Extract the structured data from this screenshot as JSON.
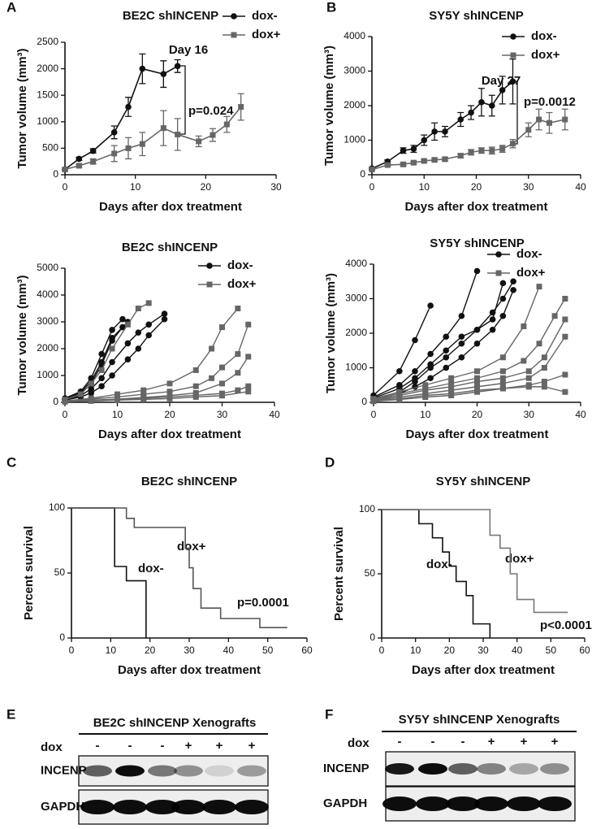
{
  "chart_data": [
    {
      "type": "line",
      "panel": "A",
      "title": "BE2C shINCENP",
      "xlabel": "Days after dox treatment",
      "ylabel": "Tumor volume (mm³)",
      "xlim": [
        0,
        30
      ],
      "xticks": [
        0,
        10,
        20,
        30
      ],
      "ylim": [
        0,
        2500
      ],
      "yticks": [
        0,
        500,
        1000,
        1500,
        2000,
        2500
      ],
      "annotations": [
        "Day 16",
        "p=0.024"
      ],
      "series": [
        {
          "name": "dox-",
          "color": "#111111",
          "marker": "circle",
          "x": [
            0,
            2,
            4,
            7,
            9,
            11,
            14,
            16
          ],
          "values": [
            100,
            300,
            450,
            800,
            1280,
            2000,
            1900,
            2050
          ],
          "errors": [
            20,
            30,
            40,
            120,
            180,
            280,
            250,
            120
          ]
        },
        {
          "name": "dox+",
          "color": "#666666",
          "marker": "square",
          "x": [
            0,
            2,
            4,
            7,
            9,
            11,
            14,
            16,
            19,
            21,
            23,
            25
          ],
          "values": [
            100,
            170,
            250,
            400,
            500,
            580,
            880,
            760,
            630,
            750,
            950,
            1280
          ],
          "errors": [
            20,
            30,
            50,
            150,
            200,
            220,
            330,
            300,
            100,
            120,
            150,
            250
          ]
        }
      ]
    },
    {
      "type": "line",
      "panel": "B",
      "title": "SY5Y shINCENP",
      "xlabel": "Days after dox treatment",
      "ylabel": "Tumor volume (mm³)",
      "xlim": [
        0,
        40
      ],
      "xticks": [
        0,
        10,
        20,
        30,
        40
      ],
      "ylim": [
        0,
        4000
      ],
      "yticks": [
        0,
        1000,
        2000,
        3000,
        4000
      ],
      "annotations": [
        "Day 27",
        "p=0.0012"
      ],
      "series": [
        {
          "name": "dox-",
          "color": "#111111",
          "marker": "circle",
          "x": [
            0,
            3,
            6,
            8,
            10,
            12,
            14,
            17,
            19,
            21,
            23,
            25,
            27
          ],
          "values": [
            180,
            380,
            700,
            750,
            1000,
            1250,
            1250,
            1600,
            1800,
            2100,
            2000,
            2450,
            2700
          ],
          "errors": [
            30,
            50,
            80,
            100,
            150,
            250,
            150,
            200,
            200,
            400,
            300,
            400,
            650
          ]
        },
        {
          "name": "dox+",
          "color": "#666666",
          "marker": "square",
          "x": [
            0,
            3,
            6,
            8,
            10,
            12,
            14,
            17,
            19,
            21,
            23,
            25,
            27,
            30,
            32,
            34,
            37
          ],
          "values": [
            150,
            280,
            300,
            350,
            400,
            430,
            450,
            550,
            650,
            700,
            700,
            750,
            900,
            1300,
            1600,
            1500,
            1600
          ],
          "errors": [
            20,
            30,
            40,
            40,
            50,
            50,
            50,
            60,
            80,
            80,
            100,
            100,
            120,
            200,
            300,
            300,
            300
          ]
        }
      ]
    },
    {
      "type": "line",
      "title": "BE2C shINCENP",
      "xlabel": "Days after dox treatment",
      "ylabel": "Tumor volume (mm³)",
      "xlim": [
        0,
        40
      ],
      "xticks": [
        0,
        10,
        20,
        30,
        40
      ],
      "ylim": [
        0,
        5000
      ],
      "yticks": [
        0,
        1000,
        2000,
        3000,
        4000,
        5000
      ],
      "series": [
        {
          "name": "dox-",
          "color": "#111111",
          "marker": "circle",
          "tumors": [
            {
              "x": [
                0,
                3,
                5,
                7,
                9,
                11
              ],
              "values": [
                150,
                400,
                900,
                1800,
                2700,
                3100
              ]
            },
            {
              "x": [
                0,
                3,
                5,
                7,
                9,
                11
              ],
              "values": [
                100,
                300,
                700,
                1400,
                2300,
                2800
              ]
            },
            {
              "x": [
                0,
                3,
                5,
                7,
                9,
                12,
                14,
                16,
                19
              ],
              "values": [
                100,
                250,
                500,
                900,
                1500,
                2200,
                2600,
                2900,
                3300
              ]
            },
            {
              "x": [
                0,
                3,
                5,
                7,
                9,
                12,
                14,
                16,
                19
              ],
              "values": [
                80,
                200,
                350,
                600,
                1000,
                1600,
                2000,
                2500,
                3100
              ]
            },
            {
              "x": [
                0,
                3,
                5,
                7,
                9,
                12
              ],
              "values": [
                120,
                350,
                800,
                1500,
                2400,
                3000
              ]
            }
          ]
        },
        {
          "name": "dox+",
          "color": "#666666",
          "marker": "square",
          "tumors": [
            {
              "x": [
                0,
                3,
                5,
                7,
                9,
                12,
                14,
                16
              ],
              "values": [
                100,
                300,
                700,
                1200,
                2000,
                2900,
                3500,
                3700
              ]
            },
            {
              "x": [
                0,
                5,
                10,
                15,
                20,
                25,
                28,
                30,
                33
              ],
              "values": [
                50,
                150,
                300,
                450,
                700,
                1200,
                2000,
                2800,
                3500
              ]
            },
            {
              "x": [
                0,
                5,
                10,
                15,
                20,
                25,
                28,
                30,
                33,
                35
              ],
              "values": [
                50,
                120,
                200,
                300,
                400,
                600,
                900,
                1300,
                1800,
                2900
              ]
            },
            {
              "x": [
                0,
                5,
                10,
                15,
                20,
                25,
                30,
                33,
                35
              ],
              "values": [
                40,
                80,
                120,
                180,
                250,
                350,
                700,
                1100,
                1700
              ]
            },
            {
              "x": [
                0,
                5,
                10,
                15,
                20,
                25,
                30,
                33,
                35
              ],
              "values": [
                30,
                60,
                100,
                150,
                200,
                260,
                330,
                450,
                600
              ]
            },
            {
              "x": [
                0,
                5,
                10,
                15,
                20,
                25,
                30,
                35
              ],
              "values": [
                20,
                50,
                80,
                110,
                140,
                200,
                250,
                400
              ]
            }
          ]
        }
      ]
    },
    {
      "type": "line",
      "title": "SY5Y shINCENP",
      "xlabel": "Days after dox treatment",
      "ylabel": "Tumor volume (mm³)",
      "xlim": [
        0,
        40
      ],
      "xticks": [
        0,
        10,
        20,
        30,
        40
      ],
      "ylim": [
        0,
        4000
      ],
      "yticks": [
        0,
        1000,
        2000,
        3000,
        4000
      ],
      "series": [
        {
          "name": "dox-",
          "color": "#111111",
          "marker": "circle",
          "tumors": [
            {
              "x": [
                0,
                5,
                8,
                11
              ],
              "values": [
                200,
                900,
                1800,
                2800
              ]
            },
            {
              "x": [
                0,
                5,
                8,
                11,
                14,
                17,
                20
              ],
              "values": [
                150,
                500,
                900,
                1400,
                1900,
                2500,
                3800
              ]
            },
            {
              "x": [
                0,
                5,
                8,
                11,
                14,
                17,
                20,
                23,
                25,
                27
              ],
              "values": [
                100,
                300,
                600,
                1000,
                1300,
                1700,
                2100,
                2600,
                3000,
                3500
              ]
            },
            {
              "x": [
                0,
                5,
                8,
                11,
                14,
                17,
                20,
                23,
                25,
                27
              ],
              "values": [
                80,
                250,
                450,
                700,
                1000,
                1300,
                1700,
                2100,
                2500,
                3250
              ]
            },
            {
              "x": [
                0,
                5,
                8,
                11,
                14,
                17,
                20,
                23,
                25
              ],
              "values": [
                120,
                400,
                700,
                1100,
                1500,
                1900,
                2100,
                2400,
                3450
              ]
            }
          ]
        },
        {
          "name": "dox+",
          "color": "#666666",
          "marker": "square",
          "tumors": [
            {
              "x": [
                0,
                5,
                10,
                15,
                20,
                25,
                29,
                32
              ],
              "values": [
                100,
                300,
                500,
                700,
                900,
                1300,
                2200,
                3350
              ]
            },
            {
              "x": [
                0,
                5,
                10,
                15,
                20,
                25,
                29,
                32,
                35,
                37
              ],
              "values": [
                80,
                250,
                400,
                550,
                700,
                900,
                1200,
                1700,
                2500,
                3000
              ]
            },
            {
              "x": [
                0,
                5,
                10,
                15,
                20,
                25,
                30,
                33,
                37
              ],
              "values": [
                60,
                200,
                350,
                450,
                600,
                700,
                900,
                1300,
                2400
              ]
            },
            {
              "x": [
                0,
                5,
                10,
                15,
                20,
                25,
                30,
                33,
                37
              ],
              "values": [
                50,
                150,
                250,
                350,
                450,
                550,
                700,
                1000,
                1900
              ]
            },
            {
              "x": [
                0,
                5,
                10,
                15,
                20,
                25,
                30,
                33,
                37
              ],
              "values": [
                40,
                100,
                200,
                250,
                350,
                400,
                500,
                600,
                800
              ]
            },
            {
              "x": [
                0,
                5,
                10,
                15,
                20,
                25,
                30,
                33,
                37
              ],
              "values": [
                30,
                80,
                150,
                200,
                300,
                400,
                450,
                450,
                300
              ]
            }
          ]
        }
      ]
    },
    {
      "type": "step",
      "panel": "C",
      "title": "BE2C shINCENP",
      "xlabel": "Days after dox treatment",
      "ylabel": "Percent survival",
      "xlim": [
        0,
        60
      ],
      "xticks": [
        0,
        10,
        20,
        30,
        40,
        50,
        60
      ],
      "ylim": [
        0,
        100
      ],
      "yticks": [
        0,
        50,
        100
      ],
      "annotations": [
        "dox+",
        "dox-",
        "p=0.0001"
      ],
      "series": [
        {
          "name": "dox-",
          "color": "#111111",
          "x": [
            0,
            11,
            14,
            19
          ],
          "values": [
            100,
            55,
            44,
            0
          ]
        },
        {
          "name": "dox+",
          "color": "#555555",
          "x": [
            0,
            14,
            16,
            29,
            30,
            31,
            33,
            38,
            48,
            55
          ],
          "values": [
            100,
            92,
            85,
            69,
            54,
            38,
            23,
            15,
            8,
            8
          ]
        }
      ]
    },
    {
      "type": "step",
      "panel": "D",
      "title": "SY5Y shINCENP",
      "xlabel": "Days after dox treatment",
      "ylabel": "Percent survival",
      "xlim": [
        0,
        60
      ],
      "xticks": [
        0,
        10,
        20,
        30,
        40,
        50,
        60
      ],
      "ylim": [
        0,
        100
      ],
      "yticks": [
        0,
        50,
        100
      ],
      "annotations": [
        "dox-",
        "dox+",
        "p<0.0001"
      ],
      "series": [
        {
          "name": "dox-",
          "color": "#111111",
          "x": [
            0,
            11,
            15,
            18,
            20,
            22,
            25,
            27,
            32
          ],
          "values": [
            100,
            89,
            78,
            67,
            56,
            44,
            33,
            11,
            0
          ]
        },
        {
          "name": "dox+",
          "color": "#777777",
          "x": [
            0,
            32,
            35,
            38,
            40,
            45,
            55
          ],
          "values": [
            100,
            80,
            70,
            50,
            30,
            20,
            20
          ]
        }
      ]
    }
  ],
  "blots": [
    {
      "panel": "E",
      "title": "BE2C shINCENP Xenografts",
      "dox_label": "dox",
      "lanes": [
        "-",
        "-",
        "-",
        "+",
        "+",
        "+"
      ],
      "rows": [
        "INCENP",
        "GAPDH"
      ]
    },
    {
      "panel": "F",
      "title": "SY5Y shINCENP Xenografts",
      "dox_label": "dox",
      "lanes": [
        "-",
        "-",
        "-",
        "+",
        "+",
        "+"
      ],
      "rows": [
        "INCENP",
        "GAPDH"
      ]
    }
  ]
}
